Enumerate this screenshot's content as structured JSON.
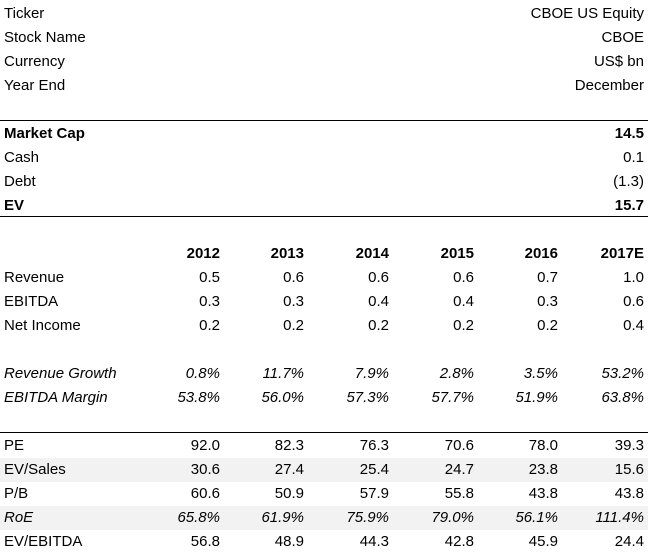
{
  "info": [
    {
      "label": "Ticker",
      "value": "CBOE US Equity"
    },
    {
      "label": "Stock Name",
      "value": "CBOE"
    },
    {
      "label": "Currency",
      "value": "US$ bn"
    },
    {
      "label": "Year End",
      "value": "December"
    }
  ],
  "valuation": [
    {
      "label": "Market Cap",
      "value": "14.5"
    },
    {
      "label": "Cash",
      "value": "0.1"
    },
    {
      "label": "Debt",
      "value": "(1.3)"
    },
    {
      "label": "EV",
      "value": "15.7"
    }
  ],
  "years": [
    "2012",
    "2013",
    "2014",
    "2015",
    "2016",
    "2017E"
  ],
  "financials": [
    {
      "label": "Revenue",
      "values": [
        "0.5",
        "0.6",
        "0.6",
        "0.6",
        "0.7",
        "1.0"
      ]
    },
    {
      "label": "EBITDA",
      "values": [
        "0.3",
        "0.3",
        "0.4",
        "0.4",
        "0.3",
        "0.6"
      ]
    },
    {
      "label": "Net Income",
      "values": [
        "0.2",
        "0.2",
        "0.2",
        "0.2",
        "0.2",
        "0.4"
      ]
    }
  ],
  "ratios": [
    {
      "label": "Revenue Growth",
      "values": [
        "0.8%",
        "11.7%",
        "7.9%",
        "2.8%",
        "3.5%",
        "53.2%"
      ]
    },
    {
      "label": "EBITDA Margin",
      "values": [
        "53.8%",
        "56.0%",
        "57.3%",
        "57.7%",
        "51.9%",
        "63.8%"
      ]
    }
  ],
  "multiples": [
    {
      "label": "PE",
      "values": [
        "92.0",
        "82.3",
        "76.3",
        "70.6",
        "78.0",
        "39.3"
      ]
    },
    {
      "label": "EV/Sales",
      "values": [
        "30.6",
        "27.4",
        "25.4",
        "24.7",
        "23.8",
        "15.6"
      ]
    },
    {
      "label": "P/B",
      "values": [
        "60.6",
        "50.9",
        "57.9",
        "55.8",
        "43.8",
        "43.8"
      ]
    },
    {
      "label": "RoE",
      "values": [
        "65.8%",
        "61.9%",
        "75.9%",
        "79.0%",
        "56.1%",
        "111.4%"
      ]
    },
    {
      "label": "EV/EBITDA",
      "values": [
        "56.8",
        "48.9",
        "44.3",
        "42.8",
        "45.9",
        "24.4"
      ]
    }
  ]
}
